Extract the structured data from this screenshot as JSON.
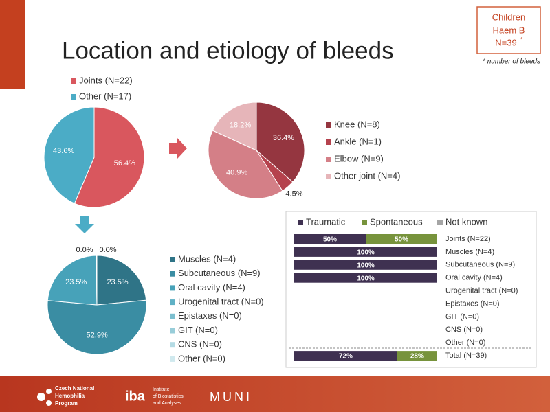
{
  "slide": {
    "title": "Location and etiology of bleeds",
    "box": [
      "Children",
      "Haem B",
      "N=39"
    ],
    "box_mark": "*",
    "footnote": "* number of bleeds",
    "footer": {
      "czech": [
        "Czech National",
        "Hemophilia",
        "Program"
      ],
      "iba": "iba",
      "iba_sub": [
        "Institute",
        "of Biostatistics",
        "and Analyses"
      ],
      "muni": "MUNI"
    }
  },
  "chart_data": [
    {
      "type": "pie",
      "categories": [
        "Joints (N=22)",
        "Other (N=17)"
      ],
      "colors": [
        "#d9575e",
        "#4bacc6"
      ],
      "values": [
        56.4,
        43.6
      ],
      "value_labels": [
        "56.4%",
        "43.6%"
      ],
      "legend": "top"
    },
    {
      "type": "pie",
      "categories": [
        "Knee (N=8)",
        "Ankle (N=1)",
        "Elbow (N=9)",
        "Other joint (N=4)"
      ],
      "colors": [
        "#953640",
        "#b5424d",
        "#d47f87",
        "#e6b5b9"
      ],
      "values": [
        36.4,
        4.5,
        40.9,
        18.2
      ],
      "value_labels": [
        "36.4%",
        "4.5%",
        "40.9%",
        "18.2%"
      ],
      "legend": "right"
    },
    {
      "type": "pie",
      "categories": [
        "Muscles (N=4)",
        "Subcutaneous (N=9)",
        "Oral cavity (N=4)",
        "Urogenital tract (N=0)",
        "Epistaxes (N=0)",
        "GIT (N=0)",
        "CNS (N=0)",
        "Other (N=0)"
      ],
      "colors": [
        "#2f7487",
        "#3a8da3",
        "#47a2b9",
        "#5fb1c5",
        "#7cbfcf",
        "#98cdd9",
        "#b4dbe4",
        "#d0e9ee"
      ],
      "values": [
        23.5,
        52.9,
        23.5,
        0,
        0,
        0,
        0,
        0
      ],
      "value_labels": [
        "23.5%",
        "52.9%",
        "23.5%",
        "0.0%",
        "0.0%",
        null,
        null,
        null
      ],
      "legend": "right"
    },
    {
      "type": "bar",
      "orientation": "horizontal",
      "stacked": true,
      "legend": "top",
      "xlim": [
        0,
        100
      ],
      "categories": [
        "Joints (N=22)",
        "Muscles (N=4)",
        "Subcutaneous (N=9)",
        "Oral cavity (N=4)",
        "Urogenital tract (N=0)",
        "Epistaxes (N=0)",
        "GIT (N=0)",
        "CNS (N=0)",
        "Other (N=0)",
        "Total (N=39)"
      ],
      "series": [
        {
          "name": "Traumatic",
          "color": "#3f3151",
          "values": [
            50,
            100,
            100,
            100,
            null,
            null,
            null,
            null,
            null,
            72
          ],
          "value_labels": [
            "50%",
            "100%",
            "100%",
            "100%",
            null,
            null,
            null,
            null,
            null,
            "72%"
          ]
        },
        {
          "name": "Spontaneous",
          "color": "#77933c",
          "values": [
            50,
            0,
            0,
            0,
            null,
            null,
            null,
            null,
            null,
            28
          ],
          "value_labels": [
            "50%",
            null,
            null,
            null,
            null,
            null,
            null,
            null,
            null,
            "28%"
          ]
        },
        {
          "name": "Not known",
          "color": "#a5a5a5",
          "values": [
            0,
            0,
            0,
            0,
            null,
            null,
            null,
            null,
            null,
            0
          ]
        }
      ]
    }
  ]
}
